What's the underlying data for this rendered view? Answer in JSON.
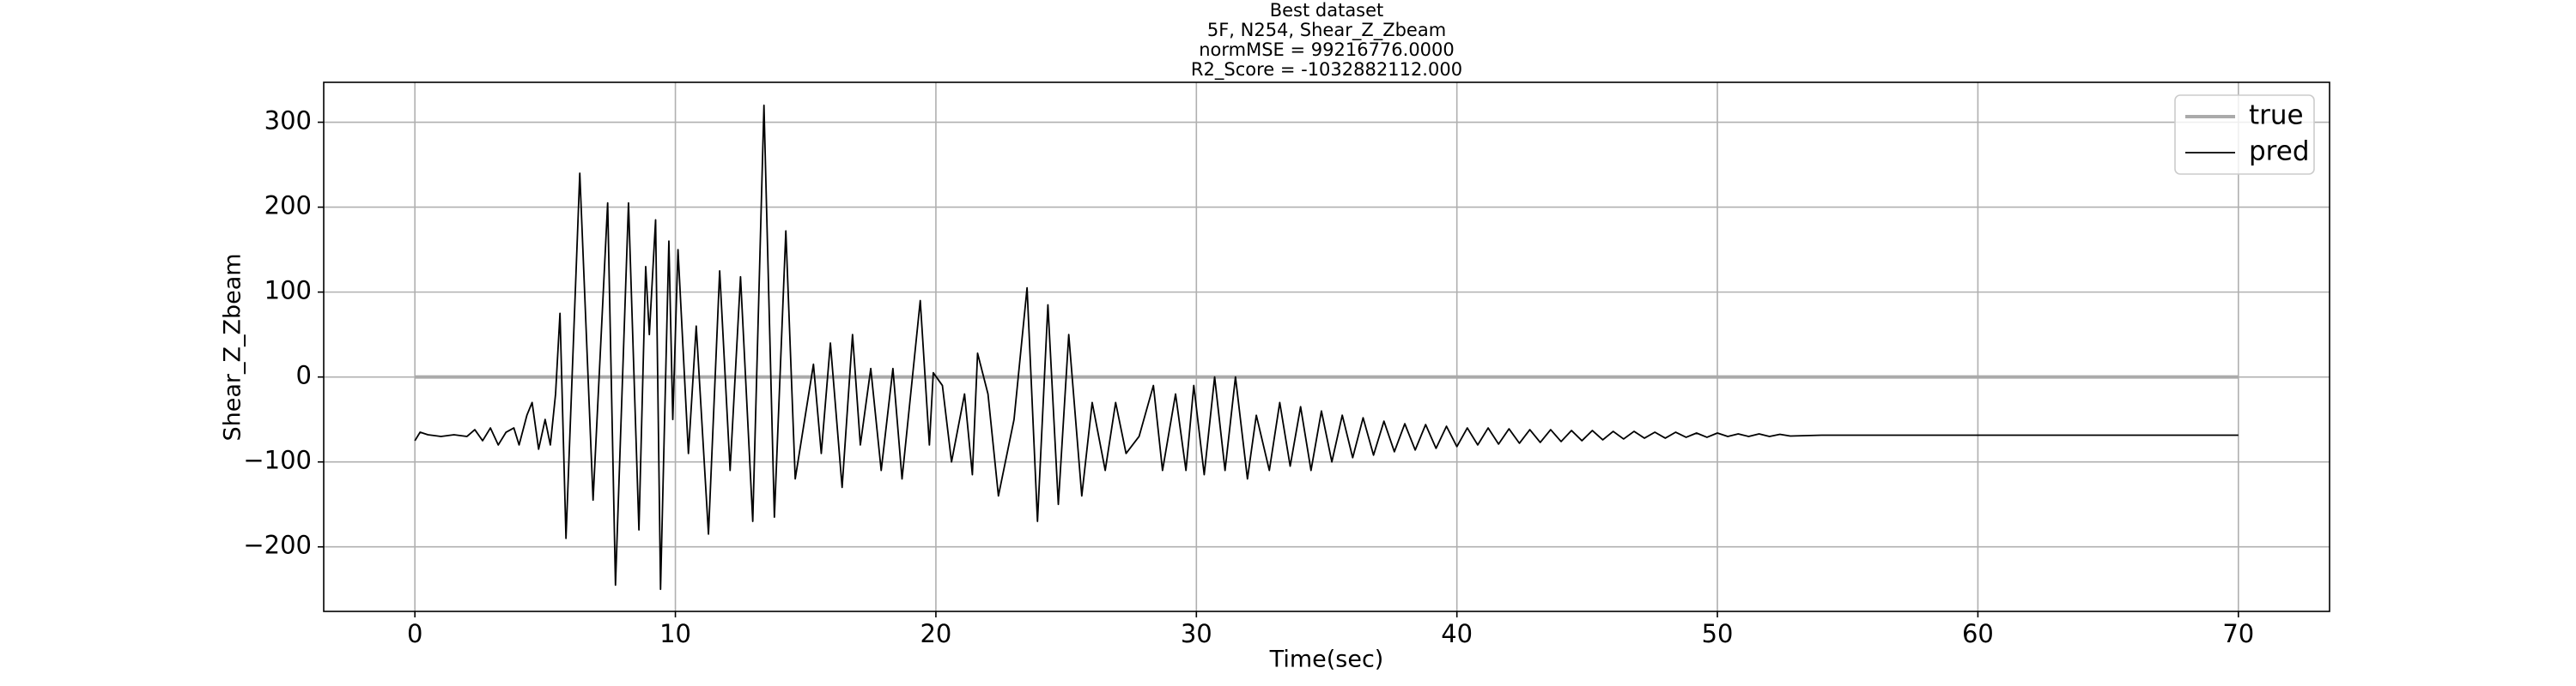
{
  "chart_data": {
    "type": "line",
    "title": [
      "Best dataset",
      "5F, N254, Shear_Z_Zbeam",
      "normMSE = 99216776.0000",
      "R2_Score = -1032882112.000"
    ],
    "xlabel": "Time(sec)",
    "ylabel": "Shear_Z_Zbeam",
    "xlim": [
      -3.5,
      73.5
    ],
    "ylim": [
      -276,
      347
    ],
    "xticks": [
      0,
      10,
      20,
      30,
      40,
      50,
      60,
      70
    ],
    "yticks": [
      {
        "value": -200,
        "label": "−200"
      },
      {
        "value": -100,
        "label": "−100"
      },
      0,
      100,
      200,
      300
    ],
    "grid": true,
    "legend": "upper right",
    "series": [
      {
        "name": "true",
        "color": "#aaaaaa",
        "x": [
          0,
          70
        ],
        "values": [
          0,
          0
        ]
      },
      {
        "name": "pred",
        "color": "#000000",
        "x": [
          0,
          0.2,
          0.5,
          1,
          1.5,
          2,
          2.3,
          2.6,
          2.9,
          3.2,
          3.5,
          3.8,
          4.0,
          4.3,
          4.5,
          4.75,
          5.0,
          5.2,
          5.4,
          5.57,
          5.8,
          6.33,
          6.84,
          7.4,
          7.7,
          8.2,
          8.6,
          8.86,
          9.0,
          9.24,
          9.43,
          9.75,
          9.9,
          10.1,
          10.5,
          10.8,
          11.27,
          11.7,
          12.1,
          12.5,
          12.97,
          13.4,
          13.8,
          14.24,
          14.6,
          15.3,
          15.6,
          15.95,
          16.4,
          16.8,
          17.1,
          17.5,
          17.9,
          18.35,
          18.7,
          19.4,
          19.75,
          19.9,
          20.25,
          20.6,
          21.1,
          21.4,
          21.6,
          22.0,
          22.4,
          23.0,
          23.5,
          23.9,
          24.3,
          24.7,
          25.1,
          25.6,
          26.0,
          26.5,
          26.9,
          27.3,
          27.8,
          28.35,
          28.7,
          29.2,
          29.6,
          29.9,
          30.3,
          30.7,
          31.1,
          31.5,
          31.96,
          32.3,
          32.8,
          33.2,
          33.6,
          34.0,
          34.4,
          34.8,
          35.2,
          35.6,
          36.0,
          36.4,
          36.8,
          37.2,
          37.6,
          38.0,
          38.4,
          38.8,
          39.2,
          39.6,
          40.0,
          40.4,
          40.8,
          41.2,
          41.6,
          42.0,
          42.4,
          42.8,
          43.2,
          43.6,
          44.0,
          44.4,
          44.8,
          45.2,
          45.6,
          46.0,
          46.4,
          46.8,
          47.2,
          47.6,
          48.0,
          48.4,
          48.8,
          49.2,
          49.6,
          50.0,
          50.4,
          50.8,
          51.2,
          51.6,
          52.0,
          52.4,
          52.8,
          54,
          70
        ],
        "values": [
          -75,
          -65,
          -68,
          -70,
          -68,
          -70,
          -62,
          -75,
          -60,
          -80,
          -65,
          -60,
          -80,
          -45,
          -30,
          -85,
          -50,
          -80,
          -20,
          75,
          -190,
          240,
          -145,
          205,
          -245,
          205,
          -180,
          130,
          50,
          185,
          -250,
          160,
          -50,
          150,
          -90,
          60,
          -185,
          125,
          -110,
          118,
          -170,
          320,
          -165,
          172,
          -120,
          15,
          -90,
          40,
          -130,
          50,
          -80,
          10,
          -110,
          10,
          -120,
          90,
          -80,
          5,
          -10,
          -100,
          -20,
          -115,
          28,
          -20,
          -140,
          -50,
          105,
          -170,
          85,
          -150,
          50,
          -140,
          -30,
          -110,
          -30,
          -90,
          -70,
          -10,
          -110,
          -20,
          -110,
          -10,
          -115,
          0,
          -110,
          0,
          -120,
          -45,
          -110,
          -30,
          -105,
          -35,
          -110,
          -40,
          -100,
          -45,
          -95,
          -48,
          -92,
          -52,
          -88,
          -55,
          -86,
          -56,
          -84,
          -58,
          -82,
          -60,
          -80,
          -60,
          -79,
          -61,
          -78,
          -62,
          -77,
          -62,
          -76,
          -63,
          -75,
          -63,
          -74,
          -64,
          -73,
          -64,
          -72,
          -65,
          -72,
          -65,
          -71,
          -66,
          -71,
          -66,
          -70,
          -67,
          -70,
          -67,
          -70,
          -67.5,
          -69.5,
          -68.5,
          -68.5
        ]
      }
    ]
  }
}
